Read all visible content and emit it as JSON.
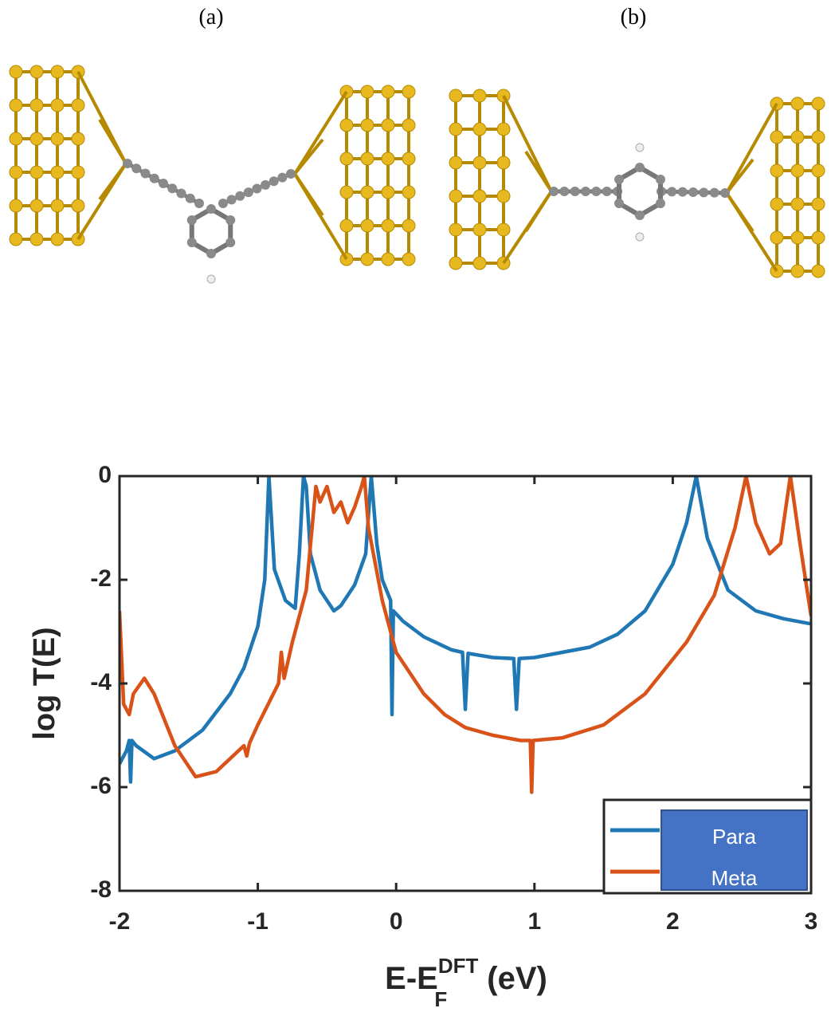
{
  "panel_labels": [
    "(a)",
    "(b)"
  ],
  "chart_data": {
    "type": "line",
    "ylabel": "log T(E)",
    "xlabel": {
      "main": "E-E",
      "sub": "F",
      "sup": "DFT",
      "unit": "(eV)"
    },
    "xlim": [
      -2,
      3
    ],
    "xticks": [
      -2,
      -1,
      0,
      1,
      2,
      3
    ],
    "ylim": [
      -8,
      0
    ],
    "yticks": [
      0,
      -2,
      -4,
      -6,
      -8
    ],
    "legend": "lower right",
    "series": [
      {
        "name": "Para",
        "color": "#1f77b4",
        "x": [
          -2,
          -1.95,
          -1.93,
          -1.92,
          -1.91,
          -1.88,
          -1.75,
          -1.6,
          -1.4,
          -1.2,
          -1.1,
          -1.0,
          -0.95,
          -0.92,
          -0.88,
          -0.8,
          -0.73,
          -0.7,
          -0.67,
          -0.65,
          -0.62,
          -0.55,
          -0.45,
          -0.4,
          -0.3,
          -0.22,
          -0.18,
          -0.14,
          -0.1,
          -0.04,
          -0.03,
          -0.02,
          0.05,
          0.2,
          0.4,
          0.48,
          0.5,
          0.52,
          0.7,
          0.85,
          0.87,
          0.89,
          1.0,
          1.2,
          1.4,
          1.6,
          1.8,
          2.0,
          2.1,
          2.17,
          2.25,
          2.4,
          2.6,
          2.8,
          3.0
        ],
        "values": [
          -5.55,
          -5.3,
          -5.1,
          -5.9,
          -5.1,
          -5.2,
          -5.45,
          -5.3,
          -4.9,
          -4.2,
          -3.7,
          -2.9,
          -2.0,
          0,
          -1.8,
          -2.4,
          -2.55,
          -1.5,
          0,
          -0.2,
          -1.5,
          -2.2,
          -2.6,
          -2.5,
          -2.1,
          -1.5,
          0,
          -1.3,
          -2.0,
          -2.4,
          -4.6,
          -2.6,
          -2.8,
          -3.1,
          -3.35,
          -3.4,
          -4.5,
          -3.42,
          -3.5,
          -3.52,
          -4.5,
          -3.52,
          -3.5,
          -3.4,
          -3.3,
          -3.05,
          -2.6,
          -1.7,
          -0.9,
          0,
          -1.2,
          -2.2,
          -2.6,
          -2.75,
          -2.85
        ]
      },
      {
        "name": "Meta",
        "color": "#d95319",
        "x": [
          -2,
          -1.97,
          -1.93,
          -1.9,
          -1.82,
          -1.75,
          -1.6,
          -1.45,
          -1.3,
          -1.1,
          -1.08,
          -1.06,
          -1.0,
          -0.85,
          -0.83,
          -0.81,
          -0.75,
          -0.65,
          -0.58,
          -0.55,
          -0.5,
          -0.45,
          -0.4,
          -0.35,
          -0.3,
          -0.25,
          -0.23,
          -0.2,
          -0.1,
          0,
          0.2,
          0.35,
          0.5,
          0.7,
          0.9,
          0.97,
          0.98,
          0.99,
          1.2,
          1.5,
          1.8,
          2.1,
          2.3,
          2.45,
          2.53,
          2.6,
          2.7,
          2.78,
          2.85,
          2.92,
          3.0
        ],
        "values": [
          -2.6,
          -4.4,
          -4.6,
          -4.2,
          -3.9,
          -4.2,
          -5.2,
          -5.8,
          -5.7,
          -5.2,
          -5.4,
          -5.15,
          -4.8,
          -4.0,
          -3.4,
          -3.9,
          -3.2,
          -2.2,
          -0.2,
          -0.5,
          -0.2,
          -0.7,
          -0.5,
          -0.9,
          -0.6,
          -0.2,
          0,
          -1.0,
          -2.4,
          -3.4,
          -4.2,
          -4.6,
          -4.85,
          -5.0,
          -5.1,
          -5.1,
          -6.1,
          -5.1,
          -5.05,
          -4.8,
          -4.2,
          -3.2,
          -2.3,
          -1.0,
          0,
          -0.9,
          -1.5,
          -1.3,
          0,
          -1.3,
          -2.7
        ]
      }
    ]
  }
}
